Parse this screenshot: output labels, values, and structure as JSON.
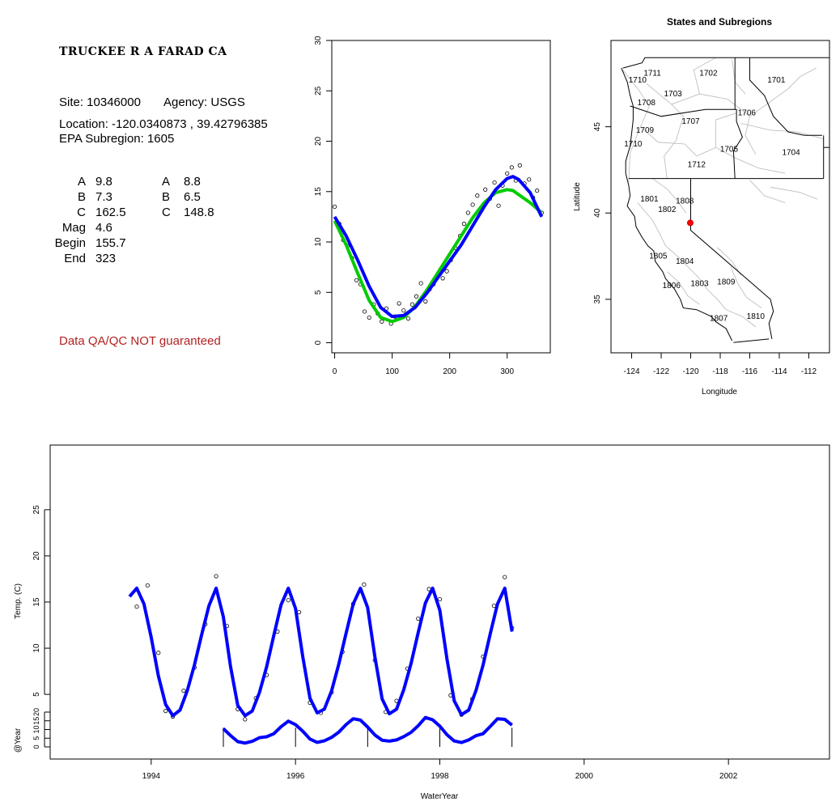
{
  "site": {
    "title": "TRUCKEE R A FARAD CA",
    "site_label": "Site: 10346000",
    "agency_label": "Agency: USGS",
    "location_label": "Location: -120.0340873 , 39.42796385",
    "subregion_label": "EPA Subregion: 1605",
    "qa_note": "Data QA/QC NOT guaranteed"
  },
  "stats": {
    "left": [
      {
        "name": "A",
        "value": "9.8"
      },
      {
        "name": "B",
        "value": "7.3"
      },
      {
        "name": "C",
        "value": "162.5"
      },
      {
        "name": "Mag",
        "value": "4.6"
      },
      {
        "name": "Begin",
        "value": "155.7"
      },
      {
        "name": "End",
        "value": "323"
      }
    ],
    "right": [
      {
        "name": "A",
        "value": "8.8"
      },
      {
        "name": "B",
        "value": "6.5"
      },
      {
        "name": "C",
        "value": "148.8"
      }
    ]
  },
  "map": {
    "title": "States and Subregions",
    "xlabel": "Longitude",
    "ylabel": "Latitude",
    "x_ticks": [
      -124,
      -122,
      -120,
      -118,
      -116,
      -114,
      -112
    ],
    "y_ticks": [
      35,
      40,
      45
    ],
    "site_point": {
      "lon": -120.03,
      "lat": 39.43
    },
    "site_color": "#ff0000",
    "regions": [
      {
        "id": "1711",
        "lon": -122.6,
        "lat": 48.1
      },
      {
        "id": "1710",
        "lon": -123.6,
        "lat": 47.7
      },
      {
        "id": "1702",
        "lon": -118.8,
        "lat": 48.1
      },
      {
        "id": "1701",
        "lon": -114.2,
        "lat": 47.7
      },
      {
        "id": "1703",
        "lon": -121.2,
        "lat": 46.9
      },
      {
        "id": "1708",
        "lon": -123.0,
        "lat": 46.4
      },
      {
        "id": "1706",
        "lon": -116.2,
        "lat": 45.8
      },
      {
        "id": "1707",
        "lon": -120.0,
        "lat": 45.3
      },
      {
        "id": "1709",
        "lon": -123.1,
        "lat": 44.8
      },
      {
        "id": "1710",
        "lon": -123.9,
        "lat": 44.0
      },
      {
        "id": "1705",
        "lon": -117.4,
        "lat": 43.7
      },
      {
        "id": "1704",
        "lon": -113.2,
        "lat": 43.5
      },
      {
        "id": "1712",
        "lon": -119.6,
        "lat": 42.8
      },
      {
        "id": "1801",
        "lon": -122.8,
        "lat": 40.8
      },
      {
        "id": "1808",
        "lon": -120.4,
        "lat": 40.7
      },
      {
        "id": "1802",
        "lon": -121.6,
        "lat": 40.2
      },
      {
        "id": "1805",
        "lon": -122.2,
        "lat": 37.5
      },
      {
        "id": "1804",
        "lon": -120.4,
        "lat": 37.2
      },
      {
        "id": "1806",
        "lon": -121.3,
        "lat": 35.8
      },
      {
        "id": "1803",
        "lon": -119.4,
        "lat": 35.9
      },
      {
        "id": "1809",
        "lon": -117.6,
        "lat": 36.0
      },
      {
        "id": "1807",
        "lon": -118.1,
        "lat": 33.9
      },
      {
        "id": "1810",
        "lon": -115.6,
        "lat": 34.0
      }
    ]
  },
  "chart_data": [
    {
      "type": "scatter",
      "title": "",
      "xlabel": "",
      "ylabel": "",
      "xlim": [
        -5,
        375
      ],
      "ylim": [
        -1,
        30
      ],
      "x_ticks": [
        0,
        100,
        200,
        300
      ],
      "y_ticks": [
        0,
        5,
        10,
        15,
        20,
        25,
        30
      ],
      "points": {
        "x": [
          0,
          8,
          15,
          22,
          30,
          38,
          45,
          52,
          60,
          68,
          75,
          82,
          90,
          98,
          105,
          112,
          120,
          128,
          135,
          142,
          150,
          158,
          165,
          172,
          180,
          188,
          195,
          202,
          210,
          218,
          225,
          232,
          240,
          248,
          255,
          262,
          270,
          278,
          285,
          292,
          300,
          308,
          315,
          322,
          330,
          338,
          345,
          352,
          360
        ],
        "y": [
          13.5,
          11.8,
          10.2,
          9.6,
          8.4,
          6.2,
          5.8,
          3.1,
          2.5,
          3.8,
          2.9,
          2.1,
          3.4,
          1.9,
          2.6,
          3.9,
          3.2,
          2.4,
          3.8,
          4.6,
          5.9,
          4.1,
          5.3,
          5.8,
          6.9,
          6.4,
          7.1,
          8.2,
          9.4,
          10.6,
          11.8,
          12.9,
          13.7,
          14.6,
          13.1,
          15.2,
          14.3,
          15.9,
          13.6,
          15.6,
          16.8,
          17.4,
          16.1,
          17.6,
          15.8,
          16.2,
          14.4,
          15.1,
          12.9
        ]
      },
      "series": [
        {
          "name": "",
          "color": "#0000ff",
          "x": [
            0,
            20,
            40,
            60,
            80,
            100,
            120,
            140,
            160,
            180,
            200,
            220,
            240,
            260,
            280,
            300,
            310,
            320,
            340,
            360
          ],
          "y": [
            12.5,
            10.6,
            8.2,
            5.6,
            3.5,
            2.6,
            2.7,
            3.5,
            4.9,
            6.5,
            8.1,
            9.7,
            11.6,
            13.5,
            15.2,
            16.3,
            16.5,
            16.2,
            14.9,
            12.5
          ]
        },
        {
          "name": "",
          "color": "#00cc00",
          "x": [
            0,
            20,
            40,
            60,
            80,
            100,
            120,
            140,
            160,
            180,
            200,
            220,
            240,
            260,
            280,
            300,
            310,
            320,
            340,
            360
          ],
          "y": [
            12.1,
            9.7,
            6.9,
            4.2,
            2.5,
            2.1,
            2.5,
            3.6,
            5.2,
            7.0,
            8.8,
            10.6,
            12.4,
            13.9,
            14.9,
            15.2,
            15.1,
            14.7,
            13.9,
            12.9
          ]
        }
      ]
    },
    {
      "type": "line",
      "title": "",
      "xlabel": "WaterYear",
      "ylabel": "Temp. (C)",
      "ylabel2": "@Year",
      "xlim": [
        1992.6,
        2003.4
      ],
      "ylim": [
        -2,
        32
      ],
      "x_ticks": [
        1994,
        1996,
        1998,
        2000,
        2002
      ],
      "y_ticks": [
        5,
        10,
        15,
        20,
        25
      ],
      "y2_ticks": [
        0,
        5,
        10,
        15,
        20
      ],
      "y2lim": [
        0,
        20
      ],
      "points": {
        "x": [
          1993.8,
          1993.95,
          1994.1,
          1994.2,
          1994.3,
          1994.45,
          1994.6,
          1994.75,
          1994.9,
          1995.05,
          1995.2,
          1995.3,
          1995.45,
          1995.6,
          1995.75,
          1995.9,
          1996.05,
          1996.2,
          1996.35,
          1996.5,
          1996.65,
          1996.8,
          1996.95,
          1997.1,
          1997.25,
          1997.4,
          1997.55,
          1997.7,
          1997.85,
          1998.0,
          1998.15,
          1998.3,
          1998.45,
          1998.6,
          1998.75,
          1998.9,
          1999.0
        ],
        "y": [
          14.5,
          16.8,
          9.5,
          3.2,
          2.6,
          5.4,
          7.9,
          12.6,
          17.8,
          12.4,
          3.4,
          2.3,
          4.6,
          7.1,
          11.8,
          15.2,
          13.9,
          4.1,
          3.0,
          5.2,
          9.6,
          14.8,
          16.9,
          8.7,
          3.1,
          4.3,
          7.8,
          13.2,
          16.4,
          15.3,
          4.9,
          2.8,
          4.5,
          9.1,
          14.6,
          17.7,
          12.2
        ]
      },
      "series": [
        {
          "name": "",
          "color": "#0000ff",
          "x": [
            1993.7,
            1993.8,
            1993.9,
            1994.0,
            1994.1,
            1994.2,
            1994.3,
            1994.4,
            1994.5,
            1994.6,
            1994.7,
            1994.8,
            1994.9,
            1995.0,
            1995.1,
            1995.2,
            1995.3,
            1995.4,
            1995.5,
            1995.6,
            1995.7,
            1995.8,
            1995.9,
            1996.0,
            1996.1,
            1996.2,
            1996.3,
            1996.4,
            1996.5,
            1996.6,
            1996.7,
            1996.8,
            1996.9,
            1997.0,
            1997.1,
            1997.2,
            1997.3,
            1997.4,
            1997.5,
            1997.6,
            1997.7,
            1997.8,
            1997.9,
            1998.0,
            1998.1,
            1998.2,
            1998.3,
            1998.4,
            1998.5,
            1998.6,
            1998.7,
            1998.8,
            1998.9,
            1999.0
          ],
          "y": [
            15.6,
            16.5,
            14.8,
            11.2,
            7.0,
            3.9,
            2.7,
            3.3,
            5.4,
            8.2,
            11.5,
            14.6,
            16.5,
            13.4,
            8.0,
            3.8,
            2.7,
            3.2,
            5.2,
            8.0,
            11.4,
            14.7,
            16.5,
            14.3,
            9.1,
            4.6,
            3.0,
            3.4,
            5.4,
            8.3,
            11.6,
            14.8,
            16.5,
            14.4,
            9.1,
            4.5,
            2.9,
            3.4,
            5.5,
            8.3,
            11.7,
            14.9,
            16.5,
            14.1,
            8.8,
            4.3,
            2.8,
            3.3,
            5.4,
            8.2,
            11.6,
            14.8,
            16.5,
            11.8
          ]
        },
        {
          "name": "",
          "color": "#0000ff",
          "axis": "y2",
          "x": [
            1995.0,
            1995.1,
            1995.2,
            1995.3,
            1995.4,
            1995.5,
            1995.6,
            1995.7,
            1995.8,
            1995.9,
            1996.0,
            1996.1,
            1996.2,
            1996.3,
            1996.4,
            1996.5,
            1996.6,
            1996.7,
            1996.8,
            1996.9,
            1997.0,
            1997.1,
            1997.2,
            1997.3,
            1997.4,
            1997.5,
            1997.6,
            1997.7,
            1997.8,
            1997.9,
            1998.0,
            1998.1,
            1998.2,
            1998.3,
            1998.4,
            1998.5,
            1998.6,
            1998.7,
            1998.8,
            1998.9,
            1999.0
          ],
          "y": [
            10.5,
            6.5,
            3.0,
            2.2,
            3.2,
            5.3,
            5.8,
            7.6,
            11.6,
            14.8,
            12.8,
            9.0,
            4.5,
            2.6,
            3.5,
            5.5,
            8.5,
            12.8,
            16.2,
            15.4,
            11.4,
            6.9,
            3.8,
            3.3,
            4.0,
            5.9,
            8.3,
            12.2,
            16.9,
            15.6,
            11.9,
            7.0,
            3.4,
            2.5,
            4.0,
            6.4,
            7.6,
            11.8,
            16.2,
            15.8,
            12.5
          ]
        }
      ],
      "year_ticks": [
        1995,
        1996,
        1997,
        1998,
        1999
      ]
    }
  ]
}
